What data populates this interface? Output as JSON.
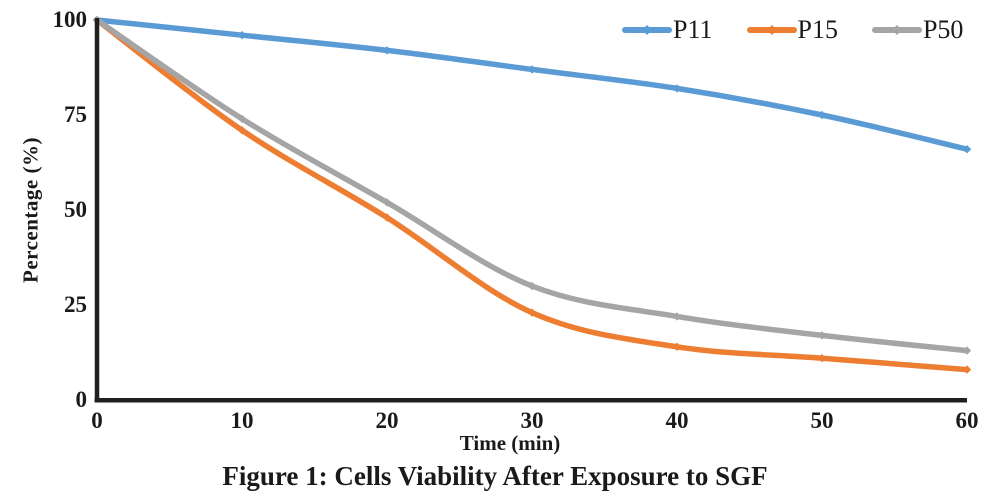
{
  "figure": {
    "caption": "Figure 1: Cells Viability After Exposure to SGF"
  },
  "chart_data": {
    "type": "line",
    "title": "Figure 1: Cells Viability After Exposure to SGF",
    "xlabel": "Time (min)",
    "ylabel": "Percentage (%)",
    "x": [
      0,
      10,
      20,
      30,
      40,
      50,
      60
    ],
    "xticks": [
      0,
      10,
      20,
      30,
      40,
      50,
      60
    ],
    "yticks": [
      0,
      25,
      50,
      75,
      100
    ],
    "xlim": [
      0,
      60
    ],
    "ylim": [
      0,
      100
    ],
    "grid": false,
    "smooth": true,
    "legend_position": "top-right",
    "axis_color": "#1f1f1f",
    "text_color": "#1a1a1a",
    "background_color": "#ffffff",
    "series": [
      {
        "name": "P11",
        "color": "#5B9BD5",
        "values": [
          100,
          96,
          92,
          87,
          82,
          75,
          66
        ]
      },
      {
        "name": "P15",
        "color": "#ED7D31",
        "values": [
          100,
          71,
          48,
          23,
          14,
          11,
          8
        ]
      },
      {
        "name": "P50",
        "color": "#A5A5A5",
        "values": [
          100,
          74,
          52,
          30,
          22,
          17,
          13
        ]
      }
    ]
  }
}
